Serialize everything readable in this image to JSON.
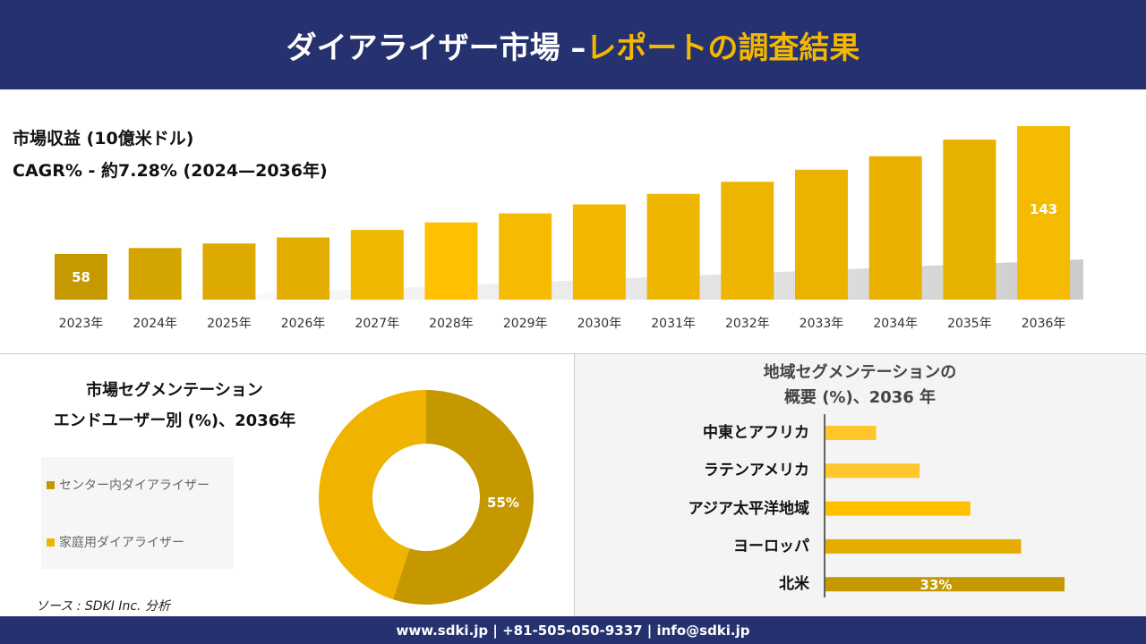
{
  "header": {
    "title_main": "ダイアライザー市場 –",
    "title_accent": "レポートの調査結果"
  },
  "revenue": {
    "title": "市場収益 (10億米ドル)",
    "cagr": "CAGR% - 約7.28% (2024—2036年)"
  },
  "chart_data": [
    {
      "type": "bar",
      "title": "市場収益 (10億米ドル)",
      "categories": [
        "2023年",
        "2024年",
        "2025年",
        "2026年",
        "2027年",
        "2028年",
        "2029年",
        "2030年",
        "2031年",
        "2032年",
        "2033年",
        "2034年",
        "2035年",
        "2036年"
      ],
      "values": [
        58,
        62,
        65,
        69,
        74,
        79,
        85,
        91,
        98,
        106,
        114,
        123,
        134,
        143
      ],
      "data_labels": {
        "0": "58",
        "13": "143"
      },
      "colors": [
        "#c49a00",
        "#d4a500",
        "#dcaa00",
        "#e3ae00",
        "#f0b800",
        "#ffc000",
        "#f5bb00",
        "#f2b800",
        "#efb600",
        "#edb400",
        "#ebb300",
        "#e9b200",
        "#e7b100",
        "#f5bb00"
      ]
    },
    {
      "type": "pie",
      "title": "市場セグメンテーション エンドユーザー別 (%)、2036年",
      "series": [
        {
          "name": "センター内ダイアライザー",
          "value": 55,
          "label": "55%",
          "color": "#c59800"
        },
        {
          "name": "家庭用ダイアライザー",
          "value": 45,
          "color": "#f0b400"
        }
      ]
    },
    {
      "type": "bar",
      "orientation": "horizontal",
      "title": "地域セグメンテーションの概要 (%)、2036 年",
      "categories": [
        "中東とアフリカ",
        "ラテンアメリカ",
        "アジア太平洋地域",
        "ヨーロッパ",
        "北米"
      ],
      "values": [
        7,
        13,
        20,
        27,
        33
      ],
      "data_labels": {
        "4": "33%"
      },
      "colors": [
        "#ffc72c",
        "#ffc72c",
        "#ffc000",
        "#e5ac00",
        "#c59800"
      ]
    }
  ],
  "segment": {
    "title_line1": "市場セグメンテーション",
    "title_line2": "エンドユーザー別 (%)、2036年"
  },
  "region": {
    "title_line1": "地域セグメンテーションの",
    "title_line2": "概要 (%)、2036 年"
  },
  "source": "ソース : SDKI Inc. 分析",
  "footer": "www.sdki.jp | +81-505-050-9337 | info@sdki.jp"
}
